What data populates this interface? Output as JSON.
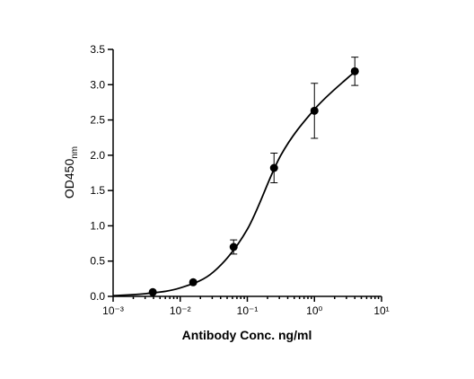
{
  "chart_data": {
    "type": "scatter",
    "x_label": "Antibody Conc. ng/ml",
    "y_label": "OD450",
    "y_label_subscript": "nm",
    "x": [
      0.0039,
      0.0156,
      0.0625,
      0.25,
      1,
      4
    ],
    "values": [
      0.06,
      0.2,
      0.7,
      1.82,
      2.63,
      3.19
    ],
    "errors": [
      0.01,
      0.01,
      0.1,
      0.21,
      0.39,
      0.2
    ],
    "color": "#000000",
    "curve": {
      "x": [
        0.001,
        0.00316,
        0.01,
        0.0316,
        0.1,
        0.316,
        1,
        3.16,
        4
      ],
      "values": [
        0.01,
        0.04,
        0.12,
        0.35,
        0.95,
        2.0,
        2.65,
        3.1,
        3.17
      ]
    },
    "xscale": "log",
    "xlim": [
      0.001,
      10
    ],
    "xticks": [
      {
        "value": 0.001,
        "label": "10⁻³"
      },
      {
        "value": 0.01,
        "label": "10⁻²"
      },
      {
        "value": 0.1,
        "label": "10⁻¹"
      },
      {
        "value": 1,
        "label": "10⁰"
      },
      {
        "value": 10,
        "label": "10¹"
      }
    ],
    "ylim": [
      0,
      3.5
    ],
    "yticks": [
      {
        "value": 0,
        "label": "0.0"
      },
      0.5,
      {
        "value": 1,
        "label": "1.0"
      },
      1.5,
      {
        "value": 2,
        "label": "2.0"
      },
      2.5,
      {
        "value": 3,
        "label": "3.0"
      },
      3.5
    ],
    "grid": false
  }
}
